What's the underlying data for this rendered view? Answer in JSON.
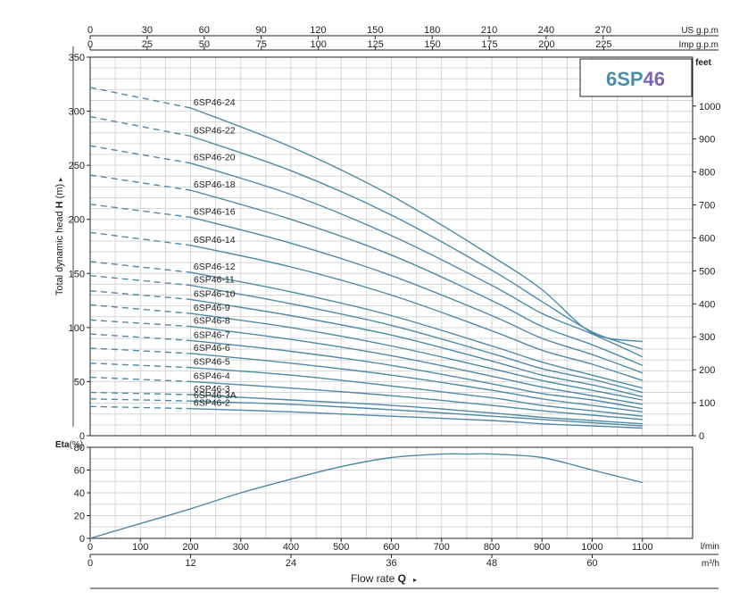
{
  "badge": {
    "model": "6SP",
    "suffix": "46",
    "model_color": "#4a8fa8",
    "suffix_color": "#7a66b0"
  },
  "units": {
    "us_gpm": "US g.p.m",
    "imp_gpm": "Imp g.p.m",
    "feet": "feet",
    "lmin": "l/min",
    "m3h": "m³/h"
  },
  "ylabel_main_prefix": "Total dynamic head ",
  "ylabel_main_bold": "H",
  "ylabel_main_suffix": " (m)",
  "arrow_glyph": "▸",
  "eta_label_bold": "Eta",
  "eta_label_unit": "(%)",
  "xlabel_prefix": "Flow rate  ",
  "xlabel_bold": "Q",
  "colors": {
    "curve": "#4e8aa6",
    "grid": "#d6d6d6",
    "axis": "#222222"
  },
  "chart_data": [
    {
      "type": "line",
      "x_unit": "l/min",
      "xlim": [
        0,
        1200
      ],
      "ylim": [
        0,
        350
      ],
      "grid": true,
      "x_ticks": [
        "0",
        "100",
        "200",
        "300",
        "400",
        "500",
        "600",
        "700",
        "800",
        "900",
        "1000",
        "1100"
      ],
      "y_ticks": [
        "0",
        "50",
        "100",
        "150",
        "200",
        "250",
        "300",
        "350"
      ],
      "top_axis_us_gpm": [
        "0",
        "30",
        "60",
        "90",
        "120",
        "150",
        "180",
        "210",
        "240",
        "270"
      ],
      "top_axis_imp_gpm": [
        "0",
        "25",
        "50",
        "75",
        "100",
        "125",
        "150",
        "175",
        "200",
        "225"
      ],
      "right_axis_feet": [
        "0",
        "100",
        "200",
        "300",
        "400",
        "500",
        "600",
        "700",
        "800",
        "900",
        "1000"
      ],
      "bottom_axis_m3h": [
        "0",
        "12",
        "24",
        "36",
        "48",
        "60"
      ],
      "dashed_below_x": 200,
      "series": [
        {
          "name": "6SP46-24",
          "x": [
            0,
            200,
            400,
            600,
            800,
            900,
            1000,
            1100
          ],
          "y": [
            322,
            303,
            267,
            222,
            166,
            135,
            95,
            87
          ]
        },
        {
          "name": "6SP46-22",
          "x": [
            0,
            200,
            400,
            600,
            800,
            900,
            1000,
            1100
          ],
          "y": [
            295,
            277,
            245,
            204,
            153,
            124,
            96,
            80
          ]
        },
        {
          "name": "6SP46-20",
          "x": [
            0,
            200,
            400,
            600,
            800,
            900,
            1000,
            1100
          ],
          "y": [
            268,
            252,
            223,
            185,
            139,
            113,
            94,
            73
          ]
        },
        {
          "name": "6SP46-18",
          "x": [
            0,
            200,
            400,
            600,
            800,
            900,
            1000,
            1100
          ],
          "y": [
            241,
            227,
            200,
            167,
            125,
            101,
            84,
            65
          ]
        },
        {
          "name": "6SP46-16",
          "x": [
            0,
            200,
            400,
            600,
            800,
            900,
            1000,
            1100
          ],
          "y": [
            214,
            202,
            178,
            148,
            111,
            90,
            75,
            58
          ]
        },
        {
          "name": "6SP46-14",
          "x": [
            0,
            200,
            400,
            600,
            800,
            900,
            1000,
            1100
          ],
          "y": [
            188,
            176,
            156,
            130,
            97,
            79,
            66,
            51
          ]
        },
        {
          "name": "6SP46-12",
          "x": [
            0,
            200,
            400,
            600,
            800,
            900,
            1000,
            1100
          ],
          "y": [
            161,
            151,
            133,
            111,
            83,
            68,
            56,
            44
          ]
        },
        {
          "name": "6SP46-11",
          "x": [
            0,
            200,
            400,
            600,
            800,
            900,
            1000,
            1100
          ],
          "y": [
            148,
            139,
            122,
            102,
            76,
            62,
            52,
            40
          ]
        },
        {
          "name": "6SP46-10",
          "x": [
            0,
            200,
            400,
            600,
            800,
            900,
            1000,
            1100
          ],
          "y": [
            134,
            126,
            111,
            93,
            69,
            56,
            47,
            36
          ]
        },
        {
          "name": "6SP46-9",
          "x": [
            0,
            200,
            400,
            600,
            800,
            900,
            1000,
            1100
          ],
          "y": [
            121,
            113,
            100,
            83,
            62,
            51,
            42,
            33
          ]
        },
        {
          "name": "6SP46-8",
          "x": [
            0,
            200,
            400,
            600,
            800,
            900,
            1000,
            1100
          ],
          "y": [
            107,
            101,
            89,
            74,
            55,
            45,
            37,
            29
          ]
        },
        {
          "name": "6SP46-7",
          "x": [
            0,
            200,
            400,
            600,
            800,
            900,
            1000,
            1100
          ],
          "y": [
            94,
            88,
            78,
            65,
            48,
            39,
            33,
            25
          ]
        },
        {
          "name": "6SP46-6",
          "x": [
            0,
            200,
            400,
            600,
            800,
            900,
            1000,
            1100
          ],
          "y": [
            81,
            76,
            67,
            56,
            42,
            34,
            28,
            22
          ]
        },
        {
          "name": "6SP46-5",
          "x": [
            0,
            200,
            400,
            600,
            800,
            900,
            1000,
            1100
          ],
          "y": [
            67,
            63,
            56,
            46,
            35,
            28,
            23,
            18
          ]
        },
        {
          "name": "6SP46-4",
          "x": [
            0,
            200,
            400,
            600,
            800,
            900,
            1000,
            1100
          ],
          "y": [
            54,
            50,
            44,
            37,
            28,
            23,
            19,
            15
          ]
        },
        {
          "name": "6SP46-3",
          "x": [
            0,
            200,
            400,
            600,
            800,
            900,
            1000,
            1100
          ],
          "y": [
            40,
            38,
            33,
            28,
            21,
            17,
            14,
            11
          ]
        },
        {
          "name": "6SP46-3A",
          "x": [
            0,
            200,
            400,
            600,
            800,
            900,
            1000,
            1100
          ],
          "y": [
            34,
            32,
            29,
            24,
            18,
            15,
            12,
            9
          ]
        },
        {
          "name": "6SP46-2",
          "x": [
            0,
            200,
            400,
            600,
            800,
            900,
            1000,
            1100
          ],
          "y": [
            27,
            25,
            22,
            18,
            14,
            11,
            9,
            7
          ]
        }
      ]
    },
    {
      "type": "line",
      "x_unit": "l/min",
      "xlim": [
        0,
        1200
      ],
      "ylim": [
        0,
        80
      ],
      "grid": true,
      "y_ticks": [
        "0",
        "20",
        "40",
        "60",
        "80"
      ],
      "series": [
        {
          "x": [
            0,
            100,
            200,
            300,
            400,
            500,
            600,
            700,
            750,
            800,
            900,
            1000,
            1100
          ],
          "y": [
            0,
            13,
            26,
            40,
            52,
            63,
            71,
            74,
            74,
            74,
            71,
            60,
            49
          ]
        }
      ]
    }
  ]
}
